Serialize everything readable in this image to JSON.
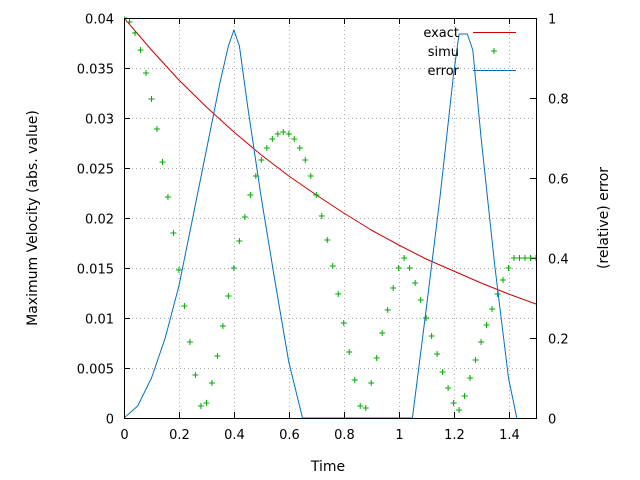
{
  "chart_data": {
    "type": "line",
    "xlabel": "Time",
    "ylabel": "Maximum Velocity (abs. value)",
    "y2label": "(relative) error",
    "xlim": [
      0,
      1.5
    ],
    "ylim": [
      0,
      0.04
    ],
    "y2lim": [
      0,
      1
    ],
    "grid": true,
    "legend_position": "top-right",
    "x_ticks": [
      "0",
      "0.2",
      "0.4",
      "0.6",
      "0.8",
      "1",
      "1.2",
      "1.4"
    ],
    "y_ticks": [
      "0",
      "0.005",
      "0.01",
      "0.015",
      "0.02",
      "0.025",
      "0.03",
      "0.035",
      "0.04"
    ],
    "y2_ticks": [
      "0",
      "0.2",
      "0.4",
      "0.6",
      "0.8",
      "1"
    ],
    "series": [
      {
        "name": "exact",
        "axis": "y",
        "style": "line",
        "color": "#cc0000",
        "x": [
          0,
          0.1,
          0.2,
          0.3,
          0.4,
          0.5,
          0.6,
          0.7,
          0.8,
          0.9,
          1.0,
          1.1,
          1.2,
          1.3,
          1.4,
          1.5
        ],
        "y": [
          0.04,
          0.0368,
          0.0338,
          0.0311,
          0.0286,
          0.0263,
          0.0242,
          0.0223,
          0.0205,
          0.0188,
          0.0173,
          0.0159,
          0.0147,
          0.0135,
          0.0124,
          0.0114
        ]
      },
      {
        "name": "simu",
        "axis": "y",
        "style": "points",
        "color": "#00aa00",
        "x": [
          0,
          0.02,
          0.04,
          0.06,
          0.08,
          0.1,
          0.12,
          0.14,
          0.16,
          0.18,
          0.2,
          0.22,
          0.24,
          0.26,
          0.28,
          0.3,
          0.32,
          0.34,
          0.36,
          0.38,
          0.4,
          0.42,
          0.44,
          0.46,
          0.48,
          0.5,
          0.52,
          0.54,
          0.56,
          0.58,
          0.6,
          0.62,
          0.64,
          0.66,
          0.68,
          0.7,
          0.72,
          0.74,
          0.76,
          0.78,
          0.8,
          0.82,
          0.84,
          0.86,
          0.88,
          0.9,
          0.92,
          0.94,
          0.96,
          0.98,
          1.0,
          1.02,
          1.04,
          1.06,
          1.08,
          1.1,
          1.12,
          1.14,
          1.16,
          1.18,
          1.2,
          1.22,
          1.24,
          1.26,
          1.28,
          1.3,
          1.32,
          1.34,
          1.36,
          1.38,
          1.4,
          1.42,
          1.44,
          1.46,
          1.48,
          1.5
        ],
        "y": [
          0.04,
          0.0396,
          0.0385,
          0.0368,
          0.0345,
          0.0319,
          0.0289,
          0.0256,
          0.0221,
          0.0185,
          0.0148,
          0.0112,
          0.0076,
          0.0043,
          0.0012,
          0.0015,
          0.0035,
          0.0062,
          0.0092,
          0.0122,
          0.015,
          0.0177,
          0.0201,
          0.0223,
          0.0242,
          0.0258,
          0.027,
          0.0279,
          0.0284,
          0.0286,
          0.0284,
          0.0279,
          0.027,
          0.0258,
          0.0242,
          0.0223,
          0.0202,
          0.0178,
          0.0152,
          0.0124,
          0.0095,
          0.0066,
          0.0038,
          0.0012,
          0.001,
          0.0035,
          0.006,
          0.0085,
          0.0108,
          0.013,
          0.015,
          0.016,
          0.015,
          0.0135,
          0.0118,
          0.01,
          0.0082,
          0.0064,
          0.0046,
          0.003,
          0.0015,
          0.0008,
          0.0022,
          0.004,
          0.0058,
          0.0076,
          0.0093,
          0.0109,
          0.0124,
          0.0138,
          0.015,
          0.016,
          0.016,
          0.016,
          0.016,
          0.016
        ]
      },
      {
        "name": "error",
        "axis": "y2",
        "style": "line",
        "color": "#0070c0",
        "x": [
          0,
          0.05,
          0.1,
          0.15,
          0.2,
          0.25,
          0.3,
          0.35,
          0.38,
          0.4,
          0.42,
          0.45,
          0.5,
          0.55,
          0.6,
          0.65,
          0.66,
          1.05,
          1.1,
          1.15,
          1.2,
          1.22,
          1.25,
          1.27,
          1.3,
          1.35,
          1.4,
          1.43
        ],
        "y": [
          0,
          0.03,
          0.1,
          0.2,
          0.33,
          0.5,
          0.67,
          0.84,
          0.93,
          0.97,
          0.93,
          0.78,
          0.55,
          0.34,
          0.14,
          0,
          0,
          0,
          0.27,
          0.55,
          0.86,
          0.96,
          0.96,
          0.92,
          0.7,
          0.38,
          0.1,
          0
        ]
      }
    ]
  }
}
